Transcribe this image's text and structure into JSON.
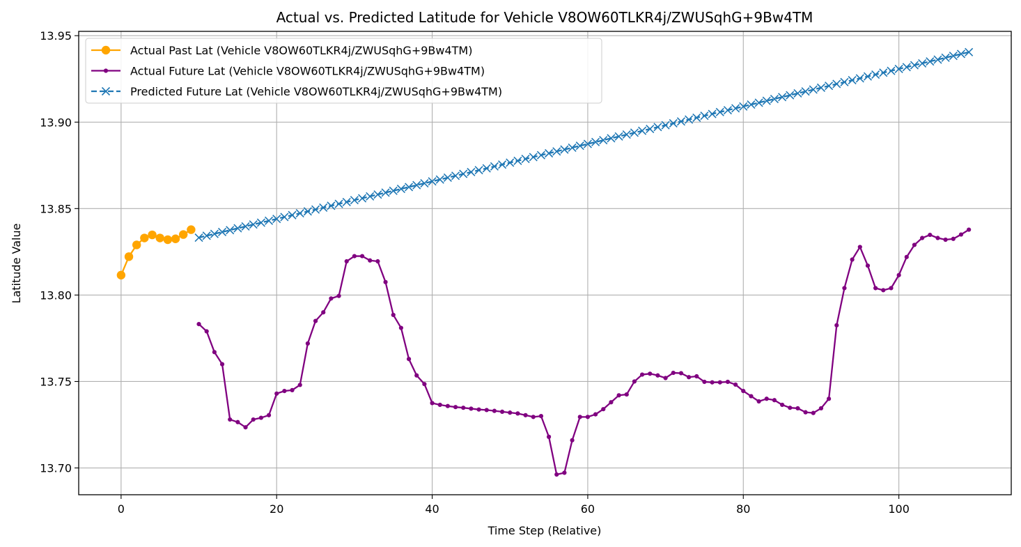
{
  "chart_data": {
    "type": "line",
    "title": "Actual vs. Predicted Latitude for Vehicle V8OW60TLKR4j/ZWUSqhG+9Bw4TM",
    "xlabel": "Time Step (Relative)",
    "ylabel": "Latitude Value",
    "xlim": [
      -5.45,
      114.45
    ],
    "ylim": [
      13.6845,
      13.9525
    ],
    "x_ticks": [
      0,
      20,
      40,
      60,
      80,
      100
    ],
    "y_ticks": [
      13.7,
      13.75,
      13.8,
      13.85,
      13.9,
      13.95
    ],
    "x_tick_labels": [
      "0",
      "20",
      "40",
      "60",
      "80",
      "100"
    ],
    "y_tick_labels": [
      "13.70",
      "13.75",
      "13.80",
      "13.85",
      "13.90",
      "13.95"
    ],
    "grid": true,
    "legend_position": "top-left",
    "series": [
      {
        "name": "Actual Past Lat (Vehicle V8OW60TLKR4j/ZWUSqhG+9Bw4TM)",
        "color": "#FFA500",
        "marker": "circle-large",
        "linestyle": "solid",
        "x_start": 0,
        "values": [
          13.8115,
          13.8222,
          13.829,
          13.833,
          13.8348,
          13.833,
          13.832,
          13.8325,
          13.835,
          13.8378
        ]
      },
      {
        "name": "Actual Future Lat (Vehicle V8OW60TLKR4j/ZWUSqhG+9Bw4TM)",
        "color": "#800080",
        "marker": "circle-small",
        "linestyle": "solid",
        "x_start": 10,
        "values": [
          13.7832,
          13.779,
          13.767,
          13.76,
          13.728,
          13.7265,
          13.7235,
          13.728,
          13.729,
          13.7305,
          13.743,
          13.7445,
          13.745,
          13.748,
          13.772,
          13.785,
          13.79,
          13.798,
          13.7995,
          13.8195,
          13.8225,
          13.8225,
          13.82,
          13.8195,
          13.8075,
          13.7885,
          13.781,
          13.763,
          13.7535,
          13.7485,
          13.7375,
          13.7365,
          13.7358,
          13.7352,
          13.7348,
          13.7343,
          13.7338,
          13.7335,
          13.733,
          13.7325,
          13.732,
          13.7315,
          13.7305,
          13.7295,
          13.73,
          13.718,
          13.6962,
          13.6972,
          13.716,
          13.7295,
          13.7295,
          13.731,
          13.734,
          13.738,
          13.742,
          13.7425,
          13.75,
          13.754,
          13.7545,
          13.7535,
          13.752,
          13.755,
          13.7548,
          13.7525,
          13.753,
          13.7498,
          13.7495,
          13.7495,
          13.7498,
          13.7482,
          13.7445,
          13.7415,
          13.7385,
          13.74,
          13.7392,
          13.7365,
          13.7348,
          13.7345,
          13.7322,
          13.7318,
          13.7345,
          13.74,
          13.7825,
          13.804,
          13.8205,
          13.8278,
          13.817,
          13.804,
          13.8028,
          13.804,
          13.8115,
          13.822,
          13.829,
          13.833,
          13.8348,
          13.833,
          13.832,
          13.8325,
          13.835,
          13.8378
        ]
      },
      {
        "name": "Predicted Future Lat (Vehicle V8OW60TLKR4j/ZWUSqhG+9Bw4TM)",
        "color": "#1F77B4",
        "marker": "x",
        "linestyle": "dashed",
        "x_start": 10,
        "x_end": 109,
        "y_start": 13.8332,
        "y_end": 13.9405,
        "count": 100
      }
    ]
  }
}
